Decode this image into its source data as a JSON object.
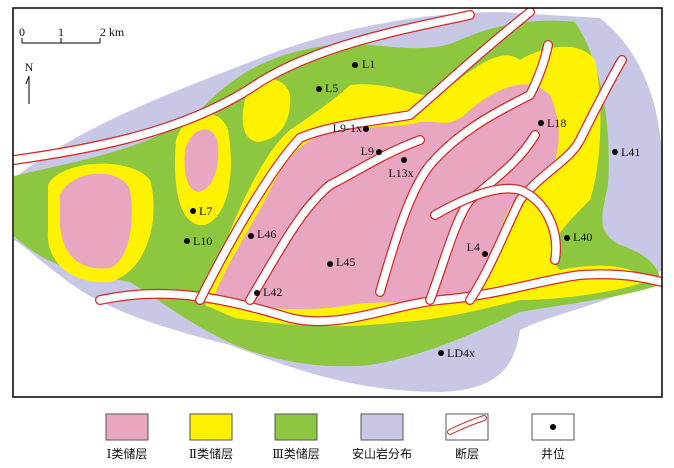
{
  "scale_bar": {
    "labels": [
      "0",
      "1",
      "2 km"
    ]
  },
  "north": "N",
  "wells": [
    "L1",
    "L5",
    "L9-1x",
    "L9",
    "L13x",
    "L18",
    "L41",
    "L7",
    "L10",
    "L46",
    "L45",
    "L42",
    "L4",
    "L40",
    "LD4x"
  ],
  "legend": [
    "Ⅰ类储层",
    "Ⅱ类储层",
    "Ⅲ类储层",
    "安山岩分布",
    "断层",
    "井位"
  ]
}
